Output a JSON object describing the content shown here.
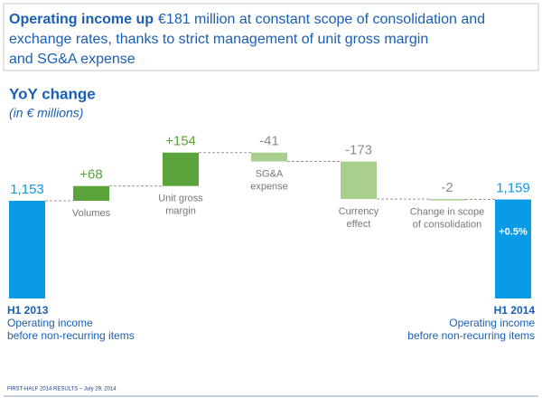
{
  "header": {
    "title_lead": "Operating income up",
    "title_rest": "€181 million at constant scope of consolidation and",
    "title_line2": "exchange rates, thanks to strict management of unit gross margin",
    "title_line3": "and SG&A expense"
  },
  "footer": "FIRST-HALF 2014 RESULTS – July 29, 2014",
  "chart_data": {
    "type": "waterfall",
    "title": "YoY change",
    "subtitle": "(in € millions)",
    "categories": [
      [
        "H1 2013",
        "Operating income",
        "before non-recurring items"
      ],
      [
        "Volumes"
      ],
      [
        "Unit gross",
        "margin"
      ],
      [
        "SG&A",
        "expense"
      ],
      [
        "Currency",
        "effect"
      ],
      [
        "Change in scope",
        "of consolidation"
      ],
      [
        "H1 2014",
        "Operating income",
        "before non-recurring items"
      ]
    ],
    "kinds": [
      "total",
      "step",
      "step",
      "step",
      "step",
      "step",
      "total"
    ],
    "values": [
      1153,
      68,
      154,
      -41,
      -173,
      -2,
      1159
    ],
    "value_labels": [
      "1,153",
      "+68",
      "+154",
      "-41",
      "-173",
      "-2",
      "1,159"
    ],
    "annotation": "+0.5%",
    "colors": {
      "total": "#0a9be6",
      "increase": "#5ba33b",
      "decrease": "#a9cf8f"
    }
  }
}
